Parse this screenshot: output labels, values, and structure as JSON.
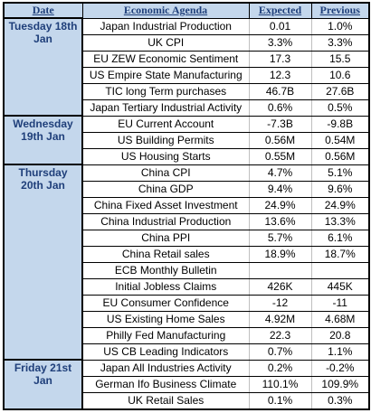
{
  "headers": {
    "date": "Date",
    "event": "Economic Agenda",
    "expected": "Expected",
    "previous": "Previous"
  },
  "days": [
    {
      "date": "Tuesday 18th Jan",
      "rows": [
        {
          "event": "Japan Industrial Production",
          "expected": "0.01",
          "previous": "1.0%"
        },
        {
          "event": "UK CPI",
          "expected": "3.3%",
          "previous": "3.3%"
        },
        {
          "event": "EU ZEW Economic Sentiment",
          "expected": "17.3",
          "previous": "15.5"
        },
        {
          "event": "US Empire State  Manufacturing",
          "expected": "12.3",
          "previous": "10.6"
        },
        {
          "event": "TIC long Term purchases",
          "expected": "46.7B",
          "previous": "27.6B"
        },
        {
          "event": "Japan Tertiary Industrial Activity",
          "expected": "0.6%",
          "previous": "0.5%"
        }
      ]
    },
    {
      "date": "Wednesday 19th Jan",
      "rows": [
        {
          "event": "EU Current Account",
          "expected": "-7.3B",
          "previous": "-9.8B"
        },
        {
          "event": "US Building Permits",
          "expected": "0.56M",
          "previous": "0.54M"
        },
        {
          "event": "US Housing Starts",
          "expected": "0.55M",
          "previous": "0.56M"
        }
      ]
    },
    {
      "date": "Thursday 20th Jan",
      "rows": [
        {
          "event": "China CPI",
          "expected": "4.7%",
          "previous": "5.1%"
        },
        {
          "event": "China GDP",
          "expected": "9.4%",
          "previous": "9.6%"
        },
        {
          "event": "China Fixed Asset Investment",
          "expected": "24.9%",
          "previous": "24.9%"
        },
        {
          "event": "China Industrial Production",
          "expected": "13.6%",
          "previous": "13.3%"
        },
        {
          "event": "China PPI",
          "expected": "5.7%",
          "previous": "6.1%"
        },
        {
          "event": "China Retail sales",
          "expected": "18.9%",
          "previous": "18.7%"
        },
        {
          "event": "ECB Monthly Bulletin",
          "expected": "",
          "previous": ""
        },
        {
          "event": "Initial Jobless Claims",
          "expected": "426K",
          "previous": "445K"
        },
        {
          "event": "EU Consumer Confidence",
          "expected": "-12",
          "previous": "-11"
        },
        {
          "event": "US Existing Home Sales",
          "expected": "4.92M",
          "previous": "4.68M"
        },
        {
          "event": "Philly Fed Manufacturing",
          "expected": "22.3",
          "previous": "20.8"
        },
        {
          "event": "US CB Leading Indicators",
          "expected": "0.7%",
          "previous": "1.1%"
        }
      ]
    },
    {
      "date": "Friday 21st Jan",
      "rows": [
        {
          "event": "Japan All Industries Activity",
          "expected": "0.2%",
          "previous": "-0.2%"
        },
        {
          "event": "German Ifo Business Climate",
          "expected": "110.1%",
          "previous": "109.9%"
        },
        {
          "event": "UK Retail Sales",
          "expected": "0.1%",
          "previous": "0.3%"
        }
      ]
    }
  ]
}
